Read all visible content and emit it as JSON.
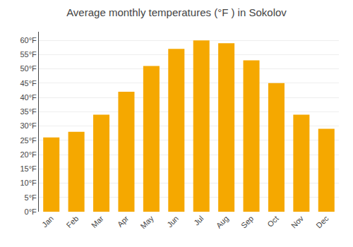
{
  "chart_data": {
    "type": "bar",
    "title": "Average monthly temperatures (°F ) in Sokolov",
    "categories": [
      "Jan",
      "Feb",
      "Mar",
      "Apr",
      "May",
      "Jun",
      "Jul",
      "Aug",
      "Sep",
      "Oct",
      "Nov",
      "Dec"
    ],
    "values": [
      26,
      28,
      34,
      42,
      51,
      57,
      60,
      59,
      53,
      45,
      34,
      29
    ],
    "color": "#F5A800",
    "ylim": [
      0,
      63
    ],
    "yticks": [
      {
        "value": 0,
        "label": "0°F"
      },
      {
        "value": 5,
        "label": "5°F"
      },
      {
        "value": 10,
        "label": "10°F"
      },
      {
        "value": 15,
        "label": "15°F"
      },
      {
        "value": 20,
        "label": "20°F"
      },
      {
        "value": 25,
        "label": "25°F"
      },
      {
        "value": 30,
        "label": "30°F"
      },
      {
        "value": 35,
        "label": "35°F"
      },
      {
        "value": 40,
        "label": "40°F"
      },
      {
        "value": 45,
        "label": "45°F"
      },
      {
        "value": 50,
        "label": "50°F"
      },
      {
        "value": 55,
        "label": "55°F"
      },
      {
        "value": 60,
        "label": "60°F"
      }
    ],
    "grid": true
  }
}
